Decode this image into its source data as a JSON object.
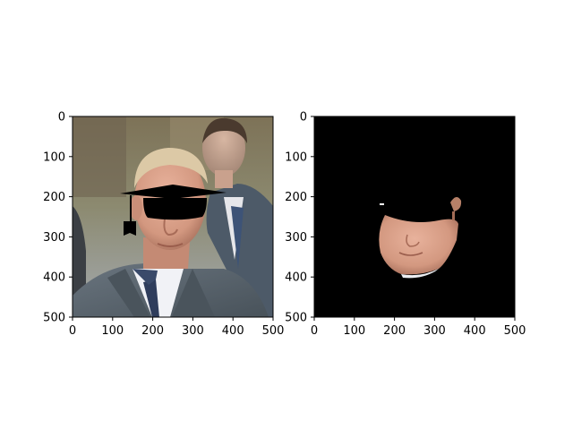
{
  "figure": {
    "background": "#ffffff",
    "panels": [
      {
        "id": "original-with-overlay",
        "description_tag": "photo-with-graduation-cap-overlay",
        "x_ticks": [
          "0",
          "100",
          "200",
          "300",
          "400",
          "500"
        ],
        "y_ticks": [
          "0",
          "100",
          "200",
          "300",
          "400",
          "500"
        ],
        "x_range": [
          0,
          500
        ],
        "y_range": [
          0,
          500
        ]
      },
      {
        "id": "segmentation-mask",
        "description_tag": "masked-face-region",
        "x_ticks": [
          "0",
          "100",
          "200",
          "300",
          "400",
          "500"
        ],
        "y_ticks": [
          "0",
          "100",
          "200",
          "300",
          "400",
          "500"
        ],
        "x_range": [
          0,
          500
        ],
        "y_range": [
          0,
          500
        ]
      }
    ],
    "colors": {
      "photo_bg_top": "#8a7a5e",
      "photo_bg_bottom": "#9aa3a8",
      "skin": "#d9a08a",
      "skin_shadow": "#b07862",
      "hair": "#d8c7a4",
      "suit": "#5b6670",
      "suit_dark": "#3f4850",
      "shirt": "#eef0f4",
      "tie": "#3a4a6a",
      "cap": "#000000",
      "mask_bg": "#000000",
      "axis": "#000000"
    }
  }
}
